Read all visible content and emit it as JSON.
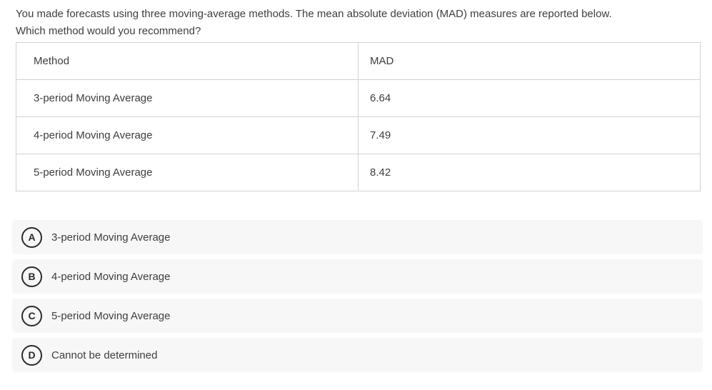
{
  "question": {
    "line1": "You made forecasts using three moving-average methods. The mean absolute deviation (MAD) measures are reported below.",
    "line2": "Which method would you recommend?"
  },
  "table": {
    "headers": {
      "method": "Method",
      "mad": "MAD"
    },
    "rows": [
      {
        "method": "3-period Moving Average",
        "mad": "6.64"
      },
      {
        "method": "4-period Moving Average",
        "mad": "7.49"
      },
      {
        "method": "5-period Moving Average",
        "mad": "8.42"
      }
    ]
  },
  "options": [
    {
      "letter": "A",
      "label": "3-period Moving Average"
    },
    {
      "letter": "B",
      "label": "4-period Moving Average"
    },
    {
      "letter": "C",
      "label": "5-period Moving Average"
    },
    {
      "letter": "D",
      "label": "Cannot be determined"
    }
  ],
  "colors": {
    "text": "#3e3e3e",
    "table_border": "#d2d2d2",
    "option_row_bg": "#f7f7f7",
    "badge_border": "#2b2b2b",
    "background": "#ffffff"
  }
}
